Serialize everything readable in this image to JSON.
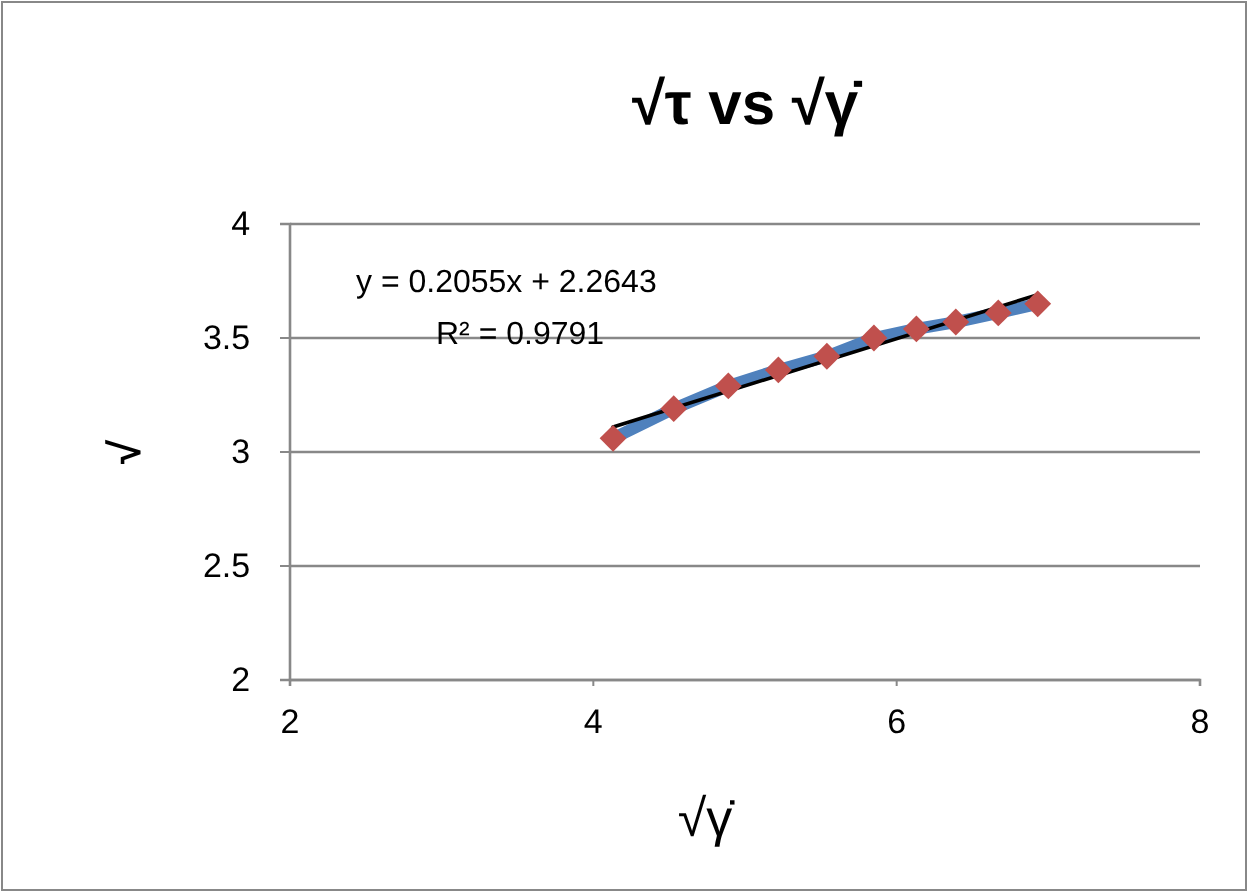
{
  "chart_data": {
    "type": "line",
    "title": "√τ vs √γ̇",
    "xlabel": "√γ̇",
    "ylabel": "√",
    "xlim": [
      2,
      8
    ],
    "xticks": [
      2,
      4,
      6,
      8
    ],
    "ylim": [
      2,
      4
    ],
    "yticks": [
      2,
      2.5,
      3,
      3.5,
      4
    ],
    "grid": "y",
    "marker": "none",
    "series": [
      {
        "color": "#4f81bd",
        "x": [
          4.13,
          4.53,
          4.89,
          5.22,
          5.54,
          5.85,
          6.13,
          6.39,
          6.67,
          6.93
        ],
        "values": [
          3.06,
          3.19,
          3.29,
          3.36,
          3.42,
          3.5,
          3.54,
          3.57,
          3.61,
          3.65
        ]
      },
      {
        "type": "scatter",
        "marker": "diamond",
        "color": "#c0504d",
        "x": [
          4.13,
          4.53,
          4.89,
          5.22,
          5.54,
          5.85,
          6.13,
          6.39,
          6.67,
          6.93
        ],
        "values": [
          3.06,
          3.19,
          3.29,
          3.36,
          3.42,
          3.5,
          3.54,
          3.57,
          3.61,
          3.65
        ]
      },
      {
        "color": "#000000",
        "x": [
          4.13,
          6.93
        ],
        "values": [
          3.11,
          3.69
        ]
      }
    ],
    "annotations": [
      "y = 0.2055x + 2.2643",
      "R² = 0.9791"
    ]
  }
}
